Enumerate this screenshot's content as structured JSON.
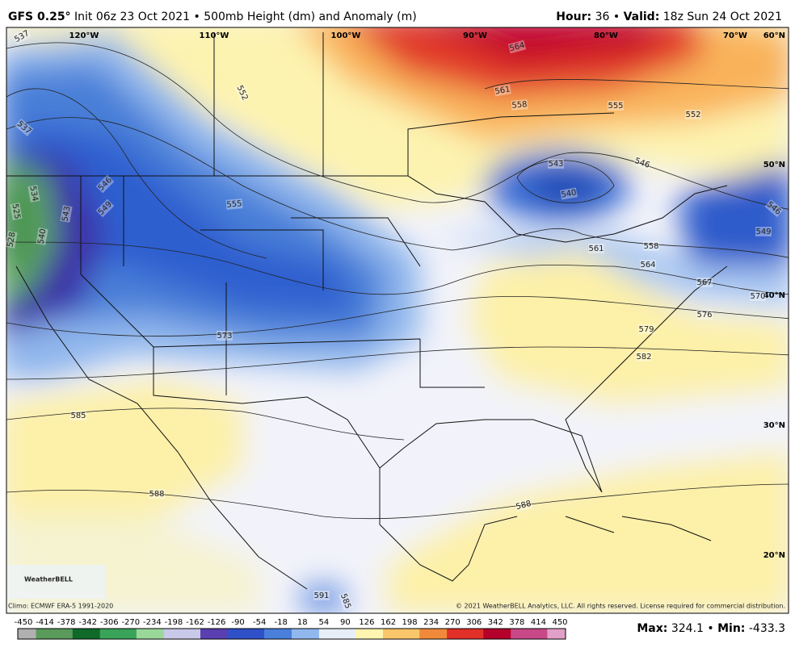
{
  "header": {
    "model": "GFS 0.25°",
    "init": "Init 06z 23 Oct 2021",
    "separator": "•",
    "product": "500mb Height (dm) and Anomaly (m)",
    "hour_label": "Hour:",
    "hour": "36",
    "valid_label": "Valid:",
    "valid": "18z Sun 24 Oct 2021"
  },
  "map": {
    "longitudes": [
      "120°W",
      "110°W",
      "100°W",
      "90°W",
      "80°W",
      "70°W"
    ],
    "latitudes": [
      "60°N",
      "50°N",
      "40°N",
      "30°N",
      "20°N"
    ],
    "contour_labels": [
      "537",
      "552",
      "564",
      "561",
      "558",
      "555",
      "552",
      "546",
      "543",
      "540",
      "537",
      "546",
      "549",
      "534",
      "525",
      "528",
      "540",
      "543",
      "555",
      "561",
      "558",
      "564",
      "567",
      "570",
      "546",
      "549",
      "573",
      "576",
      "585",
      "588",
      "588",
      "579",
      "582",
      "591",
      "585"
    ]
  },
  "footer": {
    "logo": "WeatherBELL",
    "climo": "Climo: ECMWF ERA-5 1991-2020",
    "copyright": "© 2021 WeatherBELL Analytics, LLC. All rights reserved. License required for commercial distribution."
  },
  "colorbar": {
    "ticks": [
      -450,
      -414,
      -378,
      -342,
      -306,
      -270,
      -234,
      -198,
      -162,
      -126,
      -90,
      -54,
      -18,
      18,
      54,
      90,
      126,
      162,
      198,
      234,
      270,
      306,
      342,
      378,
      414,
      450
    ]
  },
  "stats": {
    "max_label": "Max:",
    "max": 324.1,
    "min_label": "Min:",
    "min": -433.3
  }
}
